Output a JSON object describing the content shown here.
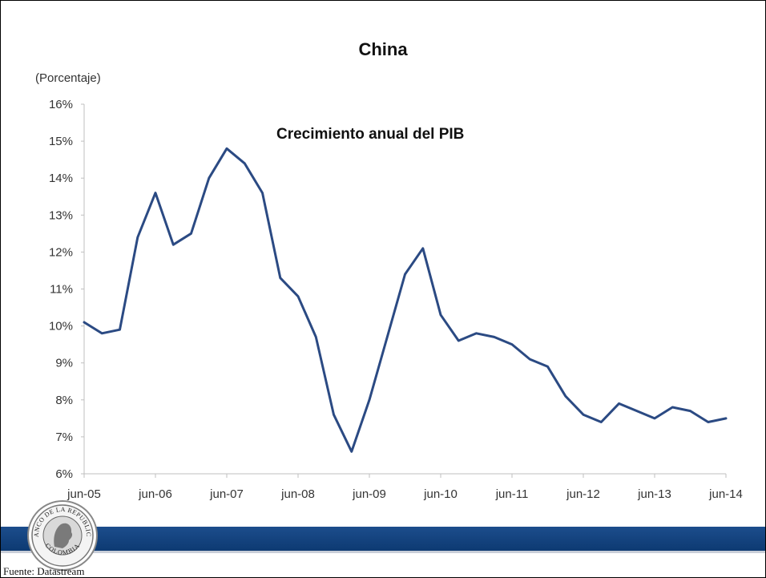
{
  "page": {
    "title": "China",
    "source": "Fuente: Datastream",
    "logo_text_top": "BANCO DE LA REPUBLICA",
    "logo_text_bottom": "COLOMBIA",
    "colors": {
      "line": "#2b4a83",
      "bar": "#1c4d8c"
    }
  },
  "chart_data": {
    "type": "line",
    "title": "China",
    "subtitle": "Crecimiento anual del PIB",
    "ylabel": "(Porcentaje)",
    "xlabel": "",
    "ylim": [
      6,
      16
    ],
    "yticks": [
      "6%",
      "7%",
      "8%",
      "9%",
      "10%",
      "11%",
      "12%",
      "13%",
      "14%",
      "15%",
      "16%"
    ],
    "xtick_labels": [
      "jun-05",
      "jun-06",
      "jun-07",
      "jun-08",
      "jun-09",
      "jun-10",
      "jun-11",
      "jun-12",
      "jun-13",
      "jun-14"
    ],
    "x": [
      "jun-05",
      "sep-05",
      "dic-05",
      "mar-06",
      "jun-06",
      "sep-06",
      "dic-06",
      "mar-07",
      "jun-07",
      "sep-07",
      "dic-07",
      "mar-08",
      "jun-08",
      "sep-08",
      "dic-08",
      "mar-09",
      "jun-09",
      "sep-09",
      "dic-09",
      "mar-10",
      "jun-10",
      "sep-10",
      "dic-10",
      "mar-11",
      "jun-11",
      "sep-11",
      "dic-11",
      "mar-12",
      "jun-12",
      "sep-12",
      "dic-12",
      "mar-13",
      "jun-13",
      "sep-13",
      "dic-13",
      "mar-14",
      "jun-14"
    ],
    "series": [
      {
        "values": [
          10.1,
          9.8,
          9.9,
          12.4,
          13.6,
          12.2,
          12.5,
          14.0,
          14.8,
          14.4,
          13.6,
          11.3,
          10.8,
          9.7,
          7.6,
          6.6,
          8.0,
          9.7,
          11.4,
          12.1,
          10.3,
          9.6,
          9.8,
          9.7,
          9.5,
          9.1,
          8.9,
          8.1,
          7.6,
          7.4,
          7.9,
          7.7,
          7.5,
          7.8,
          7.7,
          7.4,
          7.5
        ]
      }
    ],
    "grid": false,
    "legend": "none"
  }
}
